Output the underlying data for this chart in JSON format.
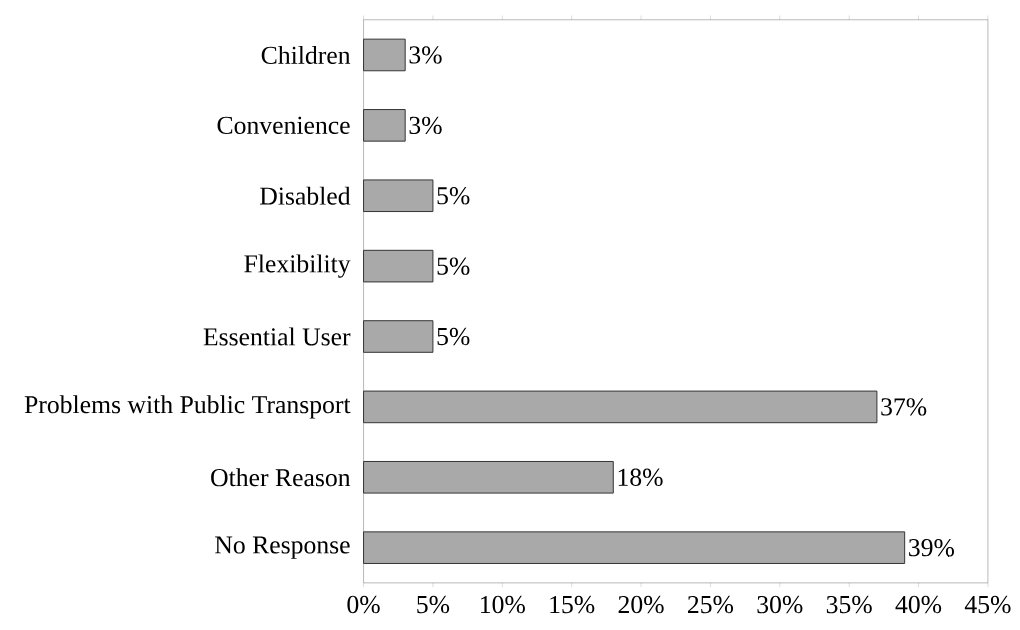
{
  "chart_data": {
    "type": "bar",
    "orientation": "horizontal",
    "categories": [
      "Children",
      "Convenience",
      "Disabled",
      "Flexibility",
      "Essential User",
      "Problems with Public Transport",
      "Other Reason",
      "No Response"
    ],
    "values": [
      3,
      3,
      5,
      5,
      5,
      37,
      18,
      39
    ],
    "value_labels": [
      "3%",
      "3%",
      "5%",
      "5%",
      "5%",
      "37%",
      "18%",
      "39%"
    ],
    "color": "#a9a9a9",
    "xlim": [
      0,
      45
    ],
    "xticks": [
      {
        "value": 0,
        "label": "0%"
      },
      {
        "value": 5,
        "label": "5%"
      },
      {
        "value": 10,
        "label": "10%"
      },
      {
        "value": 15,
        "label": "15%"
      },
      {
        "value": 20,
        "label": "20%"
      },
      {
        "value": 25,
        "label": "25%"
      },
      {
        "value": 30,
        "label": "30%"
      },
      {
        "value": 35,
        "label": "35%"
      },
      {
        "value": 40,
        "label": "40%"
      },
      {
        "value": 45,
        "label": "45%"
      }
    ],
    "grid": false
  }
}
